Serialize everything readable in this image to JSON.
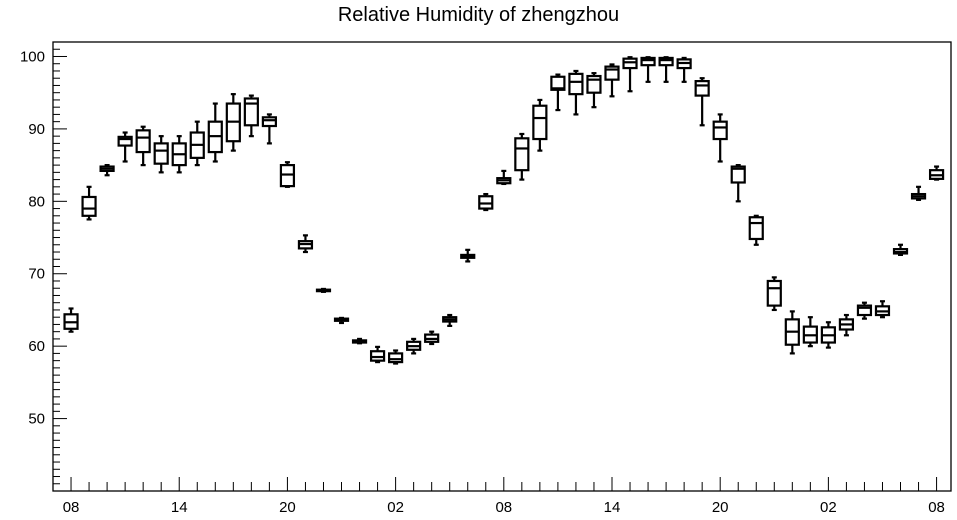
{
  "chart_data": {
    "type": "box",
    "title": "Relative Humidity of zhengzhou",
    "xlabel": "",
    "ylabel": "",
    "ylim": [
      40,
      102
    ],
    "yticks": [
      50,
      60,
      70,
      80,
      90,
      100
    ],
    "x_tick_labels": [
      "08",
      "14",
      "20",
      "02",
      "08",
      "14",
      "20",
      "02",
      "08"
    ],
    "x_tick_positions": [
      0,
      6,
      12,
      18,
      24,
      30,
      36,
      42,
      48
    ],
    "xlim": [
      -1,
      48.8
    ],
    "boxes": [
      {
        "x": 0,
        "whisker_low": 62.0,
        "q1": 62.4,
        "median": 63.3,
        "q3": 64.4,
        "whisker_high": 65.2
      },
      {
        "x": 1,
        "whisker_low": 77.5,
        "q1": 78.0,
        "median": 79.0,
        "q3": 80.6,
        "whisker_high": 82.0
      },
      {
        "x": 2,
        "whisker_low": 83.6,
        "q1": 84.2,
        "median": 84.5,
        "q3": 84.8,
        "whisker_high": 85.0
      },
      {
        "x": 3,
        "whisker_low": 85.5,
        "q1": 87.7,
        "median": 88.6,
        "q3": 88.9,
        "whisker_high": 89.5
      },
      {
        "x": 4,
        "whisker_low": 85.0,
        "q1": 86.8,
        "median": 88.8,
        "q3": 89.8,
        "whisker_high": 90.3
      },
      {
        "x": 5,
        "whisker_low": 84.0,
        "q1": 85.2,
        "median": 87.0,
        "q3": 88.0,
        "whisker_high": 89.0
      },
      {
        "x": 6,
        "whisker_low": 84.0,
        "q1": 85.0,
        "median": 86.5,
        "q3": 88.0,
        "whisker_high": 89.0
      },
      {
        "x": 7,
        "whisker_low": 85.0,
        "q1": 86.0,
        "median": 87.8,
        "q3": 89.5,
        "whisker_high": 91.0
      },
      {
        "x": 8,
        "whisker_low": 85.5,
        "q1": 86.8,
        "median": 89.0,
        "q3": 91.0,
        "whisker_high": 93.5
      },
      {
        "x": 9,
        "whisker_low": 87.0,
        "q1": 88.3,
        "median": 91.0,
        "q3": 93.5,
        "whisker_high": 94.8
      },
      {
        "x": 10,
        "whisker_low": 89.0,
        "q1": 90.5,
        "median": 93.5,
        "q3": 94.2,
        "whisker_high": 94.6
      },
      {
        "x": 11,
        "whisker_low": 88.0,
        "q1": 90.4,
        "median": 91.2,
        "q3": 91.6,
        "whisker_high": 92.0
      },
      {
        "x": 12,
        "whisker_low": 82.0,
        "q1": 82.1,
        "median": 83.7,
        "q3": 85.0,
        "whisker_high": 85.4
      },
      {
        "x": 13,
        "whisker_low": 73.0,
        "q1": 73.5,
        "median": 74.1,
        "q3": 74.5,
        "whisker_high": 75.3
      },
      {
        "x": 14,
        "whisker_low": 67.5,
        "q1": 67.6,
        "median": 67.7,
        "q3": 67.8,
        "whisker_high": 67.9
      },
      {
        "x": 15,
        "whisker_low": 63.2,
        "q1": 63.5,
        "median": 63.7,
        "q3": 63.8,
        "whisker_high": 63.9
      },
      {
        "x": 16,
        "whisker_low": 60.4,
        "q1": 60.5,
        "median": 60.7,
        "q3": 60.8,
        "whisker_high": 61.0
      },
      {
        "x": 17,
        "whisker_low": 57.8,
        "q1": 58.0,
        "median": 58.5,
        "q3": 59.3,
        "whisker_high": 59.9
      },
      {
        "x": 18,
        "whisker_low": 57.6,
        "q1": 57.8,
        "median": 58.2,
        "q3": 59.0,
        "whisker_high": 59.4
      },
      {
        "x": 19,
        "whisker_low": 59.0,
        "q1": 59.5,
        "median": 60.0,
        "q3": 60.6,
        "whisker_high": 61.0
      },
      {
        "x": 20,
        "whisker_low": 60.3,
        "q1": 60.6,
        "median": 61.0,
        "q3": 61.6,
        "whisker_high": 62.0
      },
      {
        "x": 21,
        "whisker_low": 62.8,
        "q1": 63.4,
        "median": 63.7,
        "q3": 64.0,
        "whisker_high": 64.3
      },
      {
        "x": 22,
        "whisker_low": 71.7,
        "q1": 72.2,
        "median": 72.4,
        "q3": 72.6,
        "whisker_high": 73.3
      },
      {
        "x": 23,
        "whisker_low": 78.8,
        "q1": 79.0,
        "median": 79.7,
        "q3": 80.7,
        "whisker_high": 81.0
      },
      {
        "x": 24,
        "whisker_low": 82.4,
        "q1": 82.5,
        "median": 82.9,
        "q3": 83.2,
        "whisker_high": 84.2
      },
      {
        "x": 25,
        "whisker_low": 83.0,
        "q1": 84.3,
        "median": 87.3,
        "q3": 88.7,
        "whisker_high": 89.3
      },
      {
        "x": 26,
        "whisker_low": 87.0,
        "q1": 88.6,
        "median": 91.5,
        "q3": 93.2,
        "whisker_high": 94.0
      },
      {
        "x": 27,
        "whisker_low": 92.6,
        "q1": 95.4,
        "median": 95.6,
        "q3": 97.2,
        "whisker_high": 97.5
      },
      {
        "x": 28,
        "whisker_low": 92.0,
        "q1": 94.8,
        "median": 96.5,
        "q3": 97.6,
        "whisker_high": 98.0
      },
      {
        "x": 29,
        "whisker_low": 93.0,
        "q1": 95.0,
        "median": 96.8,
        "q3": 97.3,
        "whisker_high": 97.7
      },
      {
        "x": 30,
        "whisker_low": 94.5,
        "q1": 96.8,
        "median": 98.2,
        "q3": 98.6,
        "whisker_high": 98.9
      },
      {
        "x": 31,
        "whisker_low": 95.2,
        "q1": 98.4,
        "median": 99.2,
        "q3": 99.7,
        "whisker_high": 99.9
      },
      {
        "x": 32,
        "whisker_low": 96.5,
        "q1": 98.8,
        "median": 99.5,
        "q3": 99.8,
        "whisker_high": 99.9
      },
      {
        "x": 33,
        "whisker_low": 96.5,
        "q1": 98.8,
        "median": 99.5,
        "q3": 99.8,
        "whisker_high": 99.9
      },
      {
        "x": 34,
        "whisker_low": 96.5,
        "q1": 98.4,
        "median": 99.1,
        "q3": 99.6,
        "whisker_high": 99.8
      },
      {
        "x": 35,
        "whisker_low": 90.5,
        "q1": 94.6,
        "median": 96.0,
        "q3": 96.6,
        "whisker_high": 97.0
      },
      {
        "x": 36,
        "whisker_low": 85.5,
        "q1": 88.6,
        "median": 90.2,
        "q3": 91.0,
        "whisker_high": 92.0
      },
      {
        "x": 37,
        "whisker_low": 80.0,
        "q1": 82.6,
        "median": 84.5,
        "q3": 84.8,
        "whisker_high": 85.0
      },
      {
        "x": 38,
        "whisker_low": 74.0,
        "q1": 74.8,
        "median": 77.0,
        "q3": 77.8,
        "whisker_high": 78.0
      },
      {
        "x": 39,
        "whisker_low": 65.0,
        "q1": 65.6,
        "median": 68.0,
        "q3": 69.0,
        "whisker_high": 69.5
      },
      {
        "x": 40,
        "whisker_low": 59.0,
        "q1": 60.2,
        "median": 62.0,
        "q3": 63.7,
        "whisker_high": 64.8
      },
      {
        "x": 41,
        "whisker_low": 60.0,
        "q1": 60.5,
        "median": 61.5,
        "q3": 62.7,
        "whisker_high": 64.0
      },
      {
        "x": 42,
        "whisker_low": 59.8,
        "q1": 60.5,
        "median": 61.5,
        "q3": 62.6,
        "whisker_high": 63.3
      },
      {
        "x": 43,
        "whisker_low": 61.5,
        "q1": 62.3,
        "median": 63.0,
        "q3": 63.7,
        "whisker_high": 64.3
      },
      {
        "x": 44,
        "whisker_low": 63.8,
        "q1": 64.3,
        "median": 65.3,
        "q3": 65.6,
        "whisker_high": 66.0
      },
      {
        "x": 45,
        "whisker_low": 64.0,
        "q1": 64.3,
        "median": 64.8,
        "q3": 65.5,
        "whisker_high": 66.2
      },
      {
        "x": 46,
        "whisker_low": 72.6,
        "q1": 72.8,
        "median": 73.0,
        "q3": 73.4,
        "whisker_high": 74.0
      },
      {
        "x": 47,
        "whisker_low": 80.2,
        "q1": 80.4,
        "median": 80.7,
        "q3": 81.0,
        "whisker_high": 82.0
      },
      {
        "x": 48,
        "whisker_low": 83.0,
        "q1": 83.1,
        "median": 83.6,
        "q3": 84.3,
        "whisker_high": 84.8
      }
    ]
  }
}
